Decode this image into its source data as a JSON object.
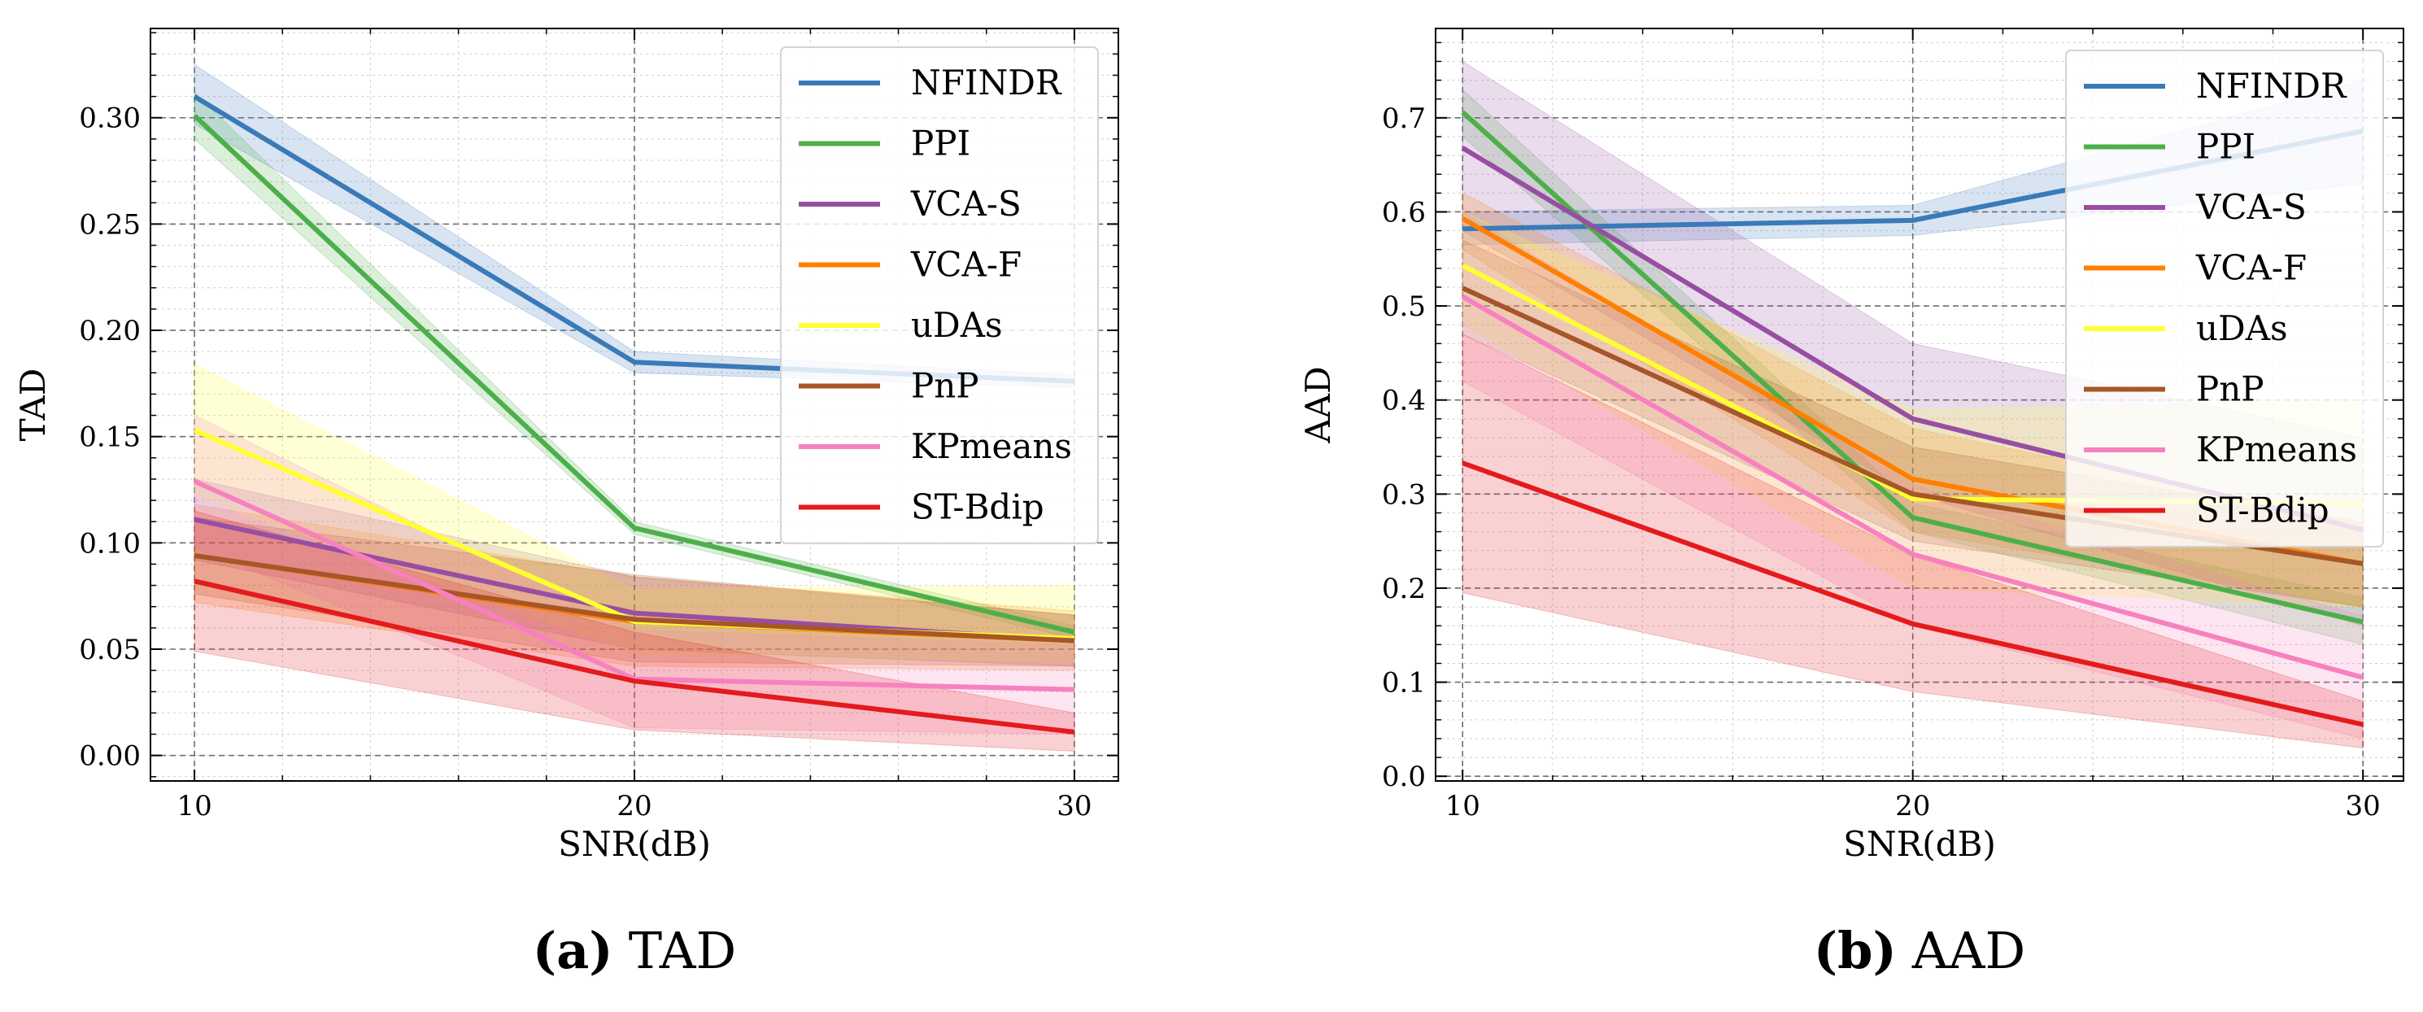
{
  "figure": {
    "caption_a": {
      "letter": "(a)",
      "text": "TAD"
    },
    "caption_b": {
      "letter": "(b)",
      "text": "AAD"
    }
  },
  "chart_data": [
    {
      "type": "line",
      "id": "tad",
      "title": "",
      "xlabel": "SNR(dB)",
      "ylabel": "TAD",
      "x": [
        10,
        20,
        30
      ],
      "xticks": [
        10,
        20,
        30
      ],
      "xlim": [
        9,
        31
      ],
      "yticks": [
        0.0,
        0.05,
        0.1,
        0.15,
        0.2,
        0.25,
        0.3
      ],
      "ytick_labels": [
        "0.00",
        "0.05",
        "0.10",
        "0.15",
        "0.20",
        "0.25",
        "0.30"
      ],
      "ylim": [
        -0.012,
        0.342
      ],
      "grid": true,
      "legend_position": "top-right",
      "series": [
        {
          "name": "NFINDR",
          "color": "#3a7ab8",
          "values": [
            0.31,
            0.185,
            0.176
          ],
          "lower": [
            0.297,
            0.18,
            0.173
          ],
          "upper": [
            0.325,
            0.19,
            0.179
          ]
        },
        {
          "name": "PPI",
          "color": "#4daf4a",
          "values": [
            0.301,
            0.107,
            0.058
          ],
          "lower": [
            0.29,
            0.104,
            0.055
          ],
          "upper": [
            0.312,
            0.11,
            0.061
          ]
        },
        {
          "name": "VCA-S",
          "color": "#984ea3",
          "values": [
            0.111,
            0.067,
            0.054
          ],
          "lower": [
            0.092,
            0.05,
            0.042
          ],
          "upper": [
            0.13,
            0.084,
            0.066
          ]
        },
        {
          "name": "VCA-F",
          "color": "#ff7f00",
          "values": [
            0.094,
            0.063,
            0.054
          ],
          "lower": [
            0.072,
            0.042,
            0.04
          ],
          "upper": [
            0.118,
            0.084,
            0.068
          ]
        },
        {
          "name": "uDAs",
          "color": "#ffff33",
          "values": [
            0.153,
            0.063,
            0.055
          ],
          "lower": [
            0.122,
            0.048,
            0.044
          ],
          "upper": [
            0.184,
            0.078,
            0.08
          ]
        },
        {
          "name": "PnP",
          "color": "#a65628",
          "values": [
            0.094,
            0.064,
            0.054
          ],
          "lower": [
            0.076,
            0.044,
            0.042
          ],
          "upper": [
            0.112,
            0.085,
            0.066
          ]
        },
        {
          "name": "KPmeans",
          "color": "#f781bf",
          "values": [
            0.129,
            0.036,
            0.031
          ],
          "lower": [
            0.098,
            0.013,
            0.01
          ],
          "upper": [
            0.16,
            0.059,
            0.052
          ]
        },
        {
          "name": "ST-Bdip",
          "color": "#e41a1c",
          "values": [
            0.082,
            0.035,
            0.011
          ],
          "lower": [
            0.049,
            0.012,
            0.002
          ],
          "upper": [
            0.115,
            0.058,
            0.02
          ]
        }
      ]
    },
    {
      "type": "line",
      "id": "aad",
      "title": "",
      "xlabel": "SNR(dB)",
      "ylabel": "AAD",
      "x": [
        10,
        20,
        30
      ],
      "xticks": [
        10,
        20,
        30
      ],
      "xlim": [
        9.4,
        30.9
      ],
      "yticks": [
        0.0,
        0.1,
        0.2,
        0.3,
        0.4,
        0.5,
        0.6,
        0.7
      ],
      "ytick_labels": [
        "0.0",
        "0.1",
        "0.2",
        "0.3",
        "0.4",
        "0.5",
        "0.6",
        "0.7"
      ],
      "ylim": [
        -0.005,
        0.795
      ],
      "grid": true,
      "legend_position": "top-right",
      "series": [
        {
          "name": "NFINDR",
          "color": "#3a7ab8",
          "values": [
            0.582,
            0.591,
            0.686
          ],
          "lower": [
            0.565,
            0.575,
            0.63
          ],
          "upper": [
            0.6,
            0.607,
            0.74
          ]
        },
        {
          "name": "PPI",
          "color": "#4daf4a",
          "values": [
            0.706,
            0.275,
            0.164
          ],
          "lower": [
            0.68,
            0.26,
            0.14
          ],
          "upper": [
            0.73,
            0.29,
            0.19
          ]
        },
        {
          "name": "VCA-S",
          "color": "#984ea3",
          "values": [
            0.668,
            0.38,
            0.262
          ],
          "lower": [
            0.58,
            0.3,
            0.16
          ],
          "upper": [
            0.76,
            0.46,
            0.36
          ]
        },
        {
          "name": "VCA-F",
          "color": "#ff7f00",
          "values": [
            0.593,
            0.316,
            0.226
          ],
          "lower": [
            0.56,
            0.26,
            0.18
          ],
          "upper": [
            0.62,
            0.37,
            0.27
          ]
        },
        {
          "name": "uDAs",
          "color": "#ffff33",
          "values": [
            0.543,
            0.295,
            0.29
          ],
          "lower": [
            0.48,
            0.2,
            0.18
          ],
          "upper": [
            0.6,
            0.39,
            0.4
          ]
        },
        {
          "name": "PnP",
          "color": "#a65628",
          "values": [
            0.519,
            0.3,
            0.226
          ],
          "lower": [
            0.47,
            0.25,
            0.18
          ],
          "upper": [
            0.57,
            0.35,
            0.27
          ]
        },
        {
          "name": "KPmeans",
          "color": "#f781bf",
          "values": [
            0.51,
            0.236,
            0.105
          ],
          "lower": [
            0.42,
            0.16,
            0.04
          ],
          "upper": [
            0.6,
            0.31,
            0.17
          ]
        },
        {
          "name": "ST-Bdip",
          "color": "#e41a1c",
          "values": [
            0.333,
            0.162,
            0.055
          ],
          "lower": [
            0.195,
            0.09,
            0.03
          ],
          "upper": [
            0.47,
            0.235,
            0.08
          ]
        }
      ]
    }
  ]
}
